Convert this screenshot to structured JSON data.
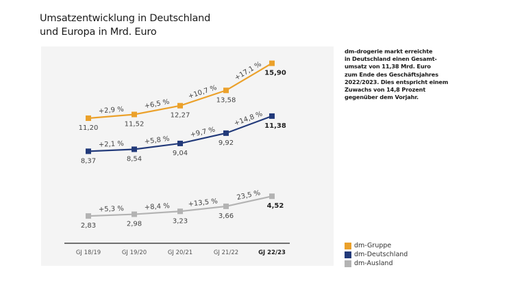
{
  "title": "Umsatzentwicklung in Deutschland\nund Europa in Mrd. Euro",
  "note": "dm-drogerie markt erreichte\nin Deutschland einen Gesamt-\numsatz von 11,38 Mrd. Euro\nzum Ende des Geschäftsjahres\n2022/2023. Dies entspricht einem\nZuwachs von 14,8 Prozent\ngegenüber dem Vorjahr.",
  "chart_data": {
    "type": "line",
    "title": "Umsatzentwicklung in Deutschland und Europa in Mrd. Euro",
    "xlabel": "",
    "ylabel": "Mrd. Euro",
    "grid": false,
    "legend_position": "bottom-right",
    "categories": [
      "GJ 18/19",
      "GJ 19/20",
      "GJ 20/21",
      "GJ 21/22",
      "GJ 22/23"
    ],
    "highlight_category_index": 4,
    "series": [
      {
        "name": "dm-Gruppe",
        "color": "#EBA12B",
        "values": [
          11.2,
          11.52,
          12.27,
          13.58,
          15.9
        ],
        "value_labels": [
          "11,20",
          "11,52",
          "12,27",
          "13,58",
          "15,90"
        ],
        "growth_labels": [
          "+2,9 %",
          "+6,5 %",
          "+10,7 %",
          "+17,1 %"
        ]
      },
      {
        "name": "dm-Deutschland",
        "color": "#223A7A",
        "values": [
          8.37,
          8.54,
          9.04,
          9.92,
          11.38
        ],
        "value_labels": [
          "8,37",
          "8,54",
          "9,04",
          "9,92",
          "11,38"
        ],
        "growth_labels": [
          "+2,1 %",
          "+5,8 %",
          "+9,7 %",
          "+14,8 %"
        ]
      },
      {
        "name": "dm-Ausland",
        "color": "#B3B3B3",
        "values": [
          2.83,
          2.98,
          3.23,
          3.66,
          4.52
        ],
        "value_labels": [
          "2,83",
          "2,98",
          "3,23",
          "3,66",
          "4,52"
        ],
        "growth_labels": [
          "+5,3 %",
          "+8,4 %",
          "+13,5 %",
          "23,5 %"
        ]
      }
    ]
  }
}
